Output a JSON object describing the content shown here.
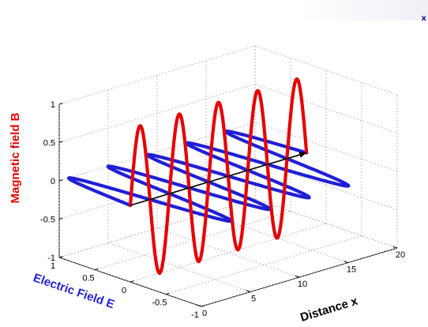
{
  "corner_mark": {
    "text": "x",
    "color": "#1a1a8c"
  },
  "chart_data": {
    "type": "line",
    "projection": "3d",
    "title": "",
    "xlabel": "Distance x",
    "ylabel": "Electric Field E",
    "zlabel": "Magnetic field B",
    "xlim": [
      0,
      20
    ],
    "ylim": [
      -1,
      1
    ],
    "zlim": [
      -1,
      1
    ],
    "x_ticks": [
      "0",
      "5",
      "10",
      "15",
      "20"
    ],
    "y_ticks": [
      "-1",
      "-0.5",
      "0",
      "0.5",
      "1"
    ],
    "z_ticks": [
      "-1",
      "-0.5",
      "0",
      "0.5",
      "1"
    ],
    "grid": true,
    "colors": {
      "electric": "#1f1fd6",
      "magnetic": "#e60000",
      "axis_line": "#000000",
      "ylabel": "#1f1fd6",
      "zlabel": "#e60000",
      "xlabel": "#000000"
    },
    "series": [
      {
        "component": "E",
        "x_range": [
          0,
          18
        ],
        "wavelength": 4,
        "amplitude": 1,
        "plane": "x-y",
        "x": [
          0,
          1,
          2,
          3,
          4,
          5,
          6,
          7,
          8,
          9,
          10,
          11,
          12,
          13,
          14,
          15,
          16,
          17,
          18
        ],
        "y": [
          0,
          1,
          0,
          -1,
          0,
          1,
          0,
          -1,
          0,
          1,
          0,
          -1,
          0,
          1,
          0,
          -1,
          0,
          1,
          0
        ],
        "z": [
          0,
          0,
          0,
          0,
          0,
          0,
          0,
          0,
          0,
          0,
          0,
          0,
          0,
          0,
          0,
          0,
          0,
          0,
          0
        ]
      },
      {
        "component": "B",
        "x_range": [
          0,
          18
        ],
        "wavelength": 4,
        "amplitude": 1,
        "plane": "x-z",
        "x": [
          0,
          1,
          2,
          3,
          4,
          5,
          6,
          7,
          8,
          9,
          10,
          11,
          12,
          13,
          14,
          15,
          16,
          17,
          18
        ],
        "y": [
          0,
          0,
          0,
          0,
          0,
          0,
          0,
          0,
          0,
          0,
          0,
          0,
          0,
          0,
          0,
          0,
          0,
          0,
          0
        ],
        "z": [
          0,
          1,
          0,
          -1,
          0,
          1,
          0,
          -1,
          0,
          1,
          0,
          -1,
          0,
          1,
          0,
          -1,
          0,
          1,
          0
        ]
      },
      {
        "component": "propagation-axis",
        "x": [
          0,
          18
        ],
        "y": [
          0,
          0
        ],
        "z": [
          0,
          0
        ],
        "arrow": true
      }
    ]
  }
}
